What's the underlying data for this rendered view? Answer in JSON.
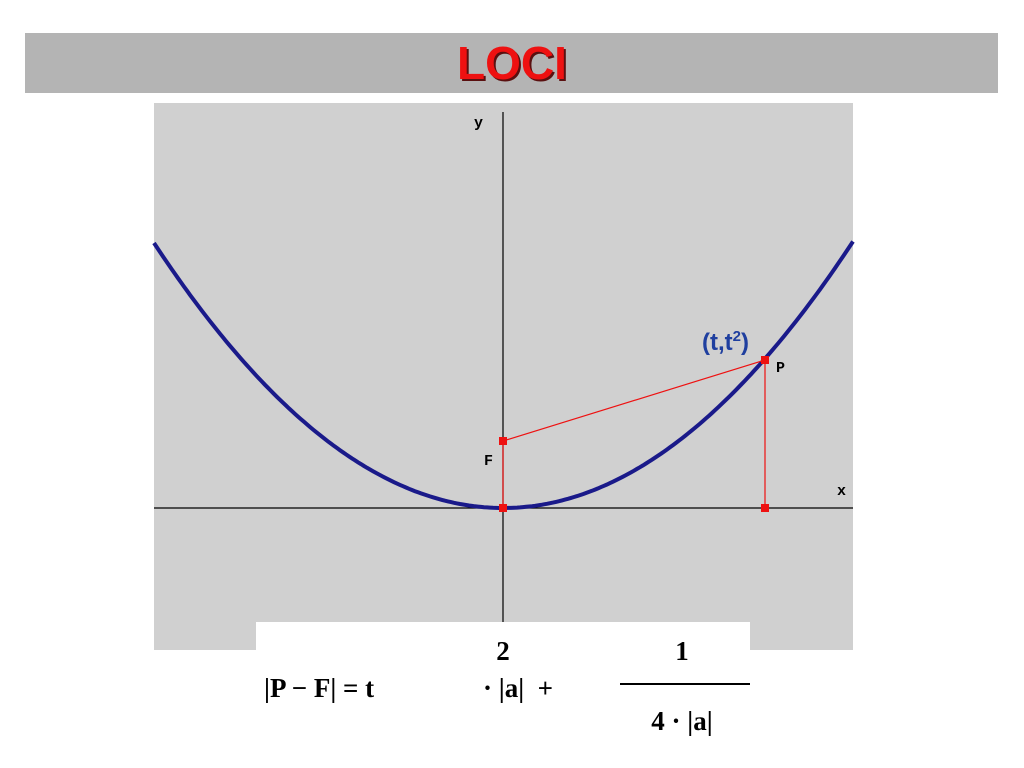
{
  "title": "LOCI",
  "graph": {
    "y_axis_label": "y",
    "x_axis_label": "x",
    "focus_label": "F",
    "point_label": "P",
    "point_annotation": {
      "open": "(t,t",
      "sup": "2",
      "close": ")"
    }
  },
  "formula": {
    "lhs": "|P − F| = t",
    "exponent": "2",
    "middle": "· |a|  +",
    "numerator": "1",
    "denominator": "4 · |a|"
  }
}
